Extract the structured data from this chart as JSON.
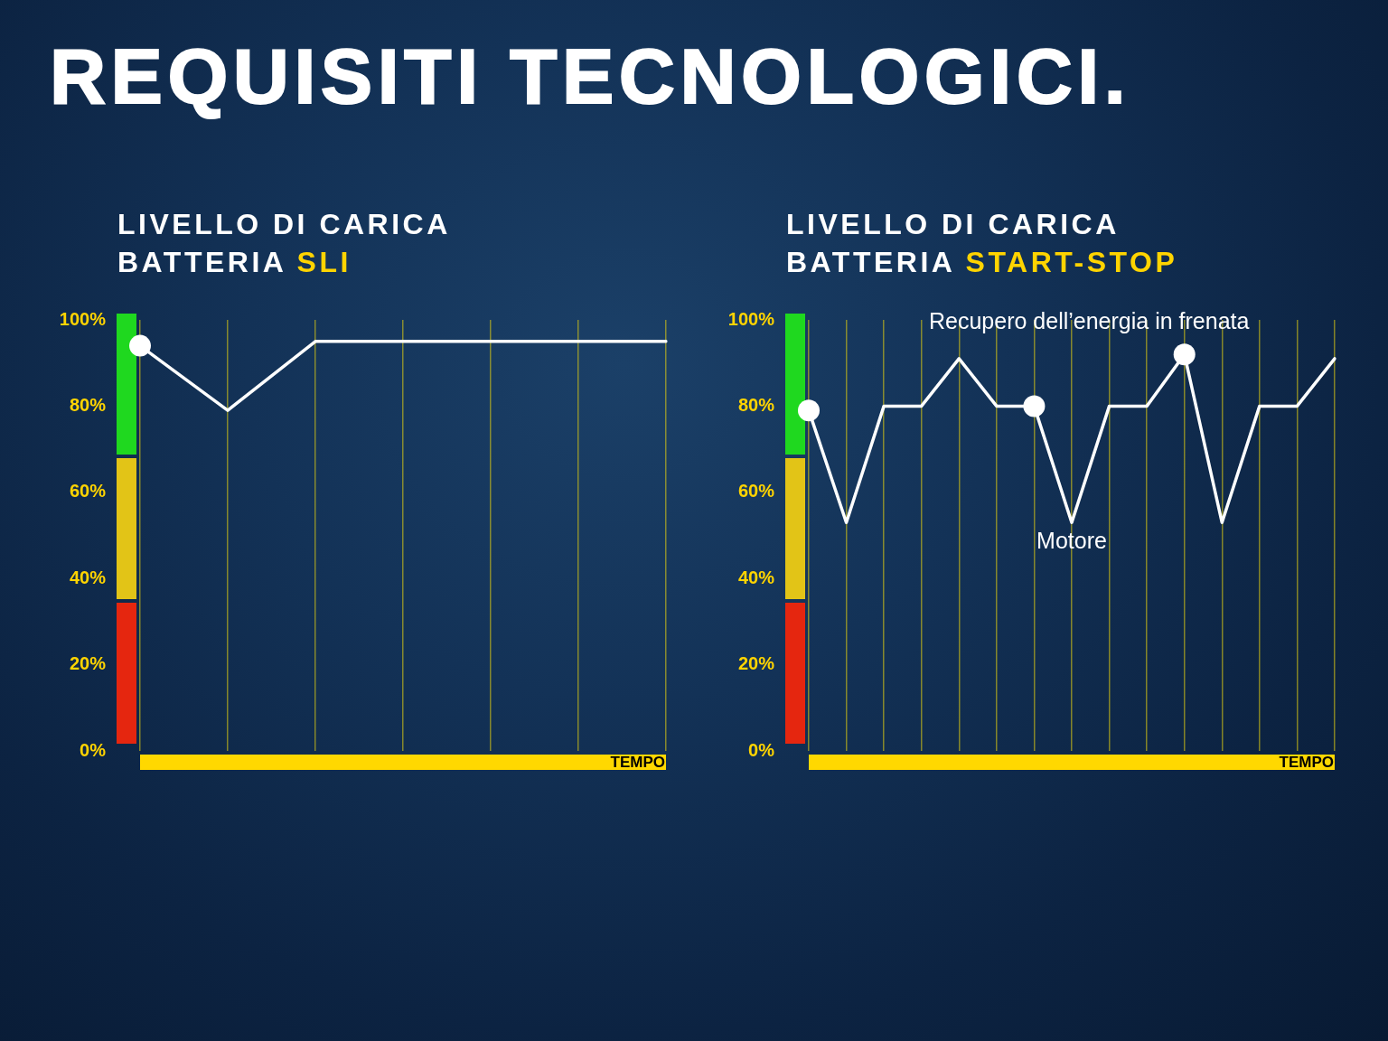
{
  "chart_data": [
    {
      "type": "line",
      "title": "REQUISITI TECNOLOGICI.",
      "subtitle": "LIVELLO DI CARICA BATTERIA SLI",
      "xlabel": "TEMPO",
      "categories": [
        null,
        null,
        null,
        null,
        null,
        null,
        null
      ],
      "ylim": [
        0,
        100
      ],
      "yticks": [
        {
          "value": 0,
          "label": "0%"
        },
        {
          "value": 20,
          "label": "20%"
        },
        {
          "value": 40,
          "label": "40%"
        },
        {
          "value": 60,
          "label": "60%"
        },
        {
          "value": 80,
          "label": "80%"
        },
        {
          "value": 100,
          "label": "100%"
        }
      ],
      "tick_labels": "y",
      "grid": "x",
      "series": [
        {
          "color": "#ffffff",
          "marker": "none",
          "values": [
            94,
            79,
            95,
            95,
            95,
            95,
            95
          ]
        },
        {
          "type": "scatter",
          "color": "#ffffff",
          "marker": "circle",
          "values": [
            94,
            null,
            null,
            null,
            null,
            null,
            null
          ]
        }
      ]
    },
    {
      "type": "line",
      "subtitle": "LIVELLO DI CARICA BATTERIA START-STOP",
      "xlabel": "TEMPO",
      "categories": [
        null,
        null,
        null,
        null,
        null,
        null,
        null,
        null,
        null,
        null,
        null,
        null,
        null,
        null,
        null
      ],
      "ylim": [
        0,
        100
      ],
      "yticks": [
        {
          "value": 0,
          "label": "0%"
        },
        {
          "value": 20,
          "label": "20%"
        },
        {
          "value": 40,
          "label": "40%"
        },
        {
          "value": 60,
          "label": "60%"
        },
        {
          "value": 80,
          "label": "80%"
        },
        {
          "value": 100,
          "label": "100%"
        }
      ],
      "tick_labels": "y",
      "grid": "x",
      "annotations": [
        "Recupero dell’energia in frenata",
        "Motore"
      ],
      "series": [
        {
          "color": "#ffffff",
          "marker": "none",
          "values": [
            79,
            53,
            80,
            80,
            91,
            80,
            80,
            53,
            80,
            80,
            92,
            53,
            80,
            80,
            91
          ]
        },
        {
          "type": "scatter",
          "color": "#ffffff",
          "marker": "circle",
          "values": [
            79,
            null,
            null,
            null,
            null,
            null,
            80,
            null,
            null,
            null,
            92,
            null,
            null,
            null,
            null
          ]
        }
      ]
    }
  ]
}
